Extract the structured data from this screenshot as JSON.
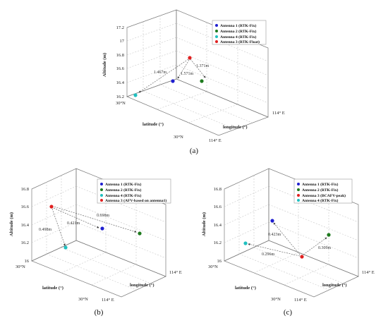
{
  "chart_data": [
    {
      "type": "scatter",
      "panel_label": "(a)",
      "zlabel": "Altitude (m)",
      "xlabel": "latitude (°)",
      "ylabel": "longitude (°)",
      "zticks": [
        "16.2",
        "16.4",
        "16.6",
        "16.8",
        "17",
        "17.2"
      ],
      "lat_ticks": [
        "30°N",
        "30°N"
      ],
      "lon_ticks": [
        "114° E",
        "114° E"
      ],
      "legend_position": "top-right",
      "series": [
        {
          "name": "Antenna 1 (RTK-Fix)",
          "color": "#1f1fd0",
          "altitude": 16.48
        },
        {
          "name": "Antenna 2 (RTK-Fix)",
          "color": "#1e7a1e",
          "altitude": 16.5
        },
        {
          "name": "Antenna 4 (RTK-Fix)",
          "color": "#20c0c0",
          "altitude": 16.28
        },
        {
          "name": "Antenna 3 (RTK-Float)",
          "color": "#e02020",
          "altitude": 16.85
        }
      ],
      "distances": [
        "1.467m",
        "1.571m",
        "1.371m"
      ]
    },
    {
      "type": "scatter",
      "panel_label": "(b)",
      "zlabel": "Altitude (m)",
      "xlabel": "latitude (°)",
      "ylabel": "longitude (°)",
      "zticks": [
        "16",
        "16.2",
        "16.4",
        "16.6",
        "16.8"
      ],
      "lat_ticks": [
        "30°N",
        "30°N"
      ],
      "lon_ticks": [
        "114° E",
        "114° E"
      ],
      "legend_position": "top-right",
      "series": [
        {
          "name": "Antenna 1 (RTK-Fix)",
          "color": "#1f1fd0",
          "altitude": 16.33
        },
        {
          "name": "Antenna 2 (RTK-Fix)",
          "color": "#1e7a1e",
          "altitude": 16.28
        },
        {
          "name": "Antenna 4 (RTK-Fix)",
          "color": "#20c0c0",
          "altitude": 16.14
        },
        {
          "name": "Antenna 3 (AFV-based on antenna1)",
          "color": "#e02020",
          "altitude": 16.58
        }
      ],
      "distances": [
        "0.498m",
        "0.421m",
        "0.698m"
      ]
    },
    {
      "type": "scatter",
      "panel_label": "(c)",
      "zlabel": "Altitude (m)",
      "xlabel": "latitude (°)",
      "ylabel": "longitude (°)",
      "zticks": [
        "16",
        "16.2",
        "16.4",
        "16.6",
        "16.8"
      ],
      "lat_ticks": [
        "30°N",
        "30°N"
      ],
      "lon_ticks": [
        "114° E",
        "114° E"
      ],
      "legend_position": "top-right",
      "series": [
        {
          "name": "Antenna 1 (RTK-Fix)",
          "color": "#1f1fd0",
          "altitude": 16.44
        },
        {
          "name": "Antenna 2 (RTK-Fix)",
          "color": "#1e7a1e",
          "altitude": 16.27
        },
        {
          "name": "Antenna 3 (BCAFV-peak)",
          "color": "#e02020",
          "altitude": 16.04
        },
        {
          "name": "Antenna 4 (RTK-Fix)",
          "color": "#20c0c0",
          "altitude": 16.19
        }
      ],
      "distances": [
        "0.423m",
        "0.296m",
        "0.309m"
      ]
    }
  ]
}
